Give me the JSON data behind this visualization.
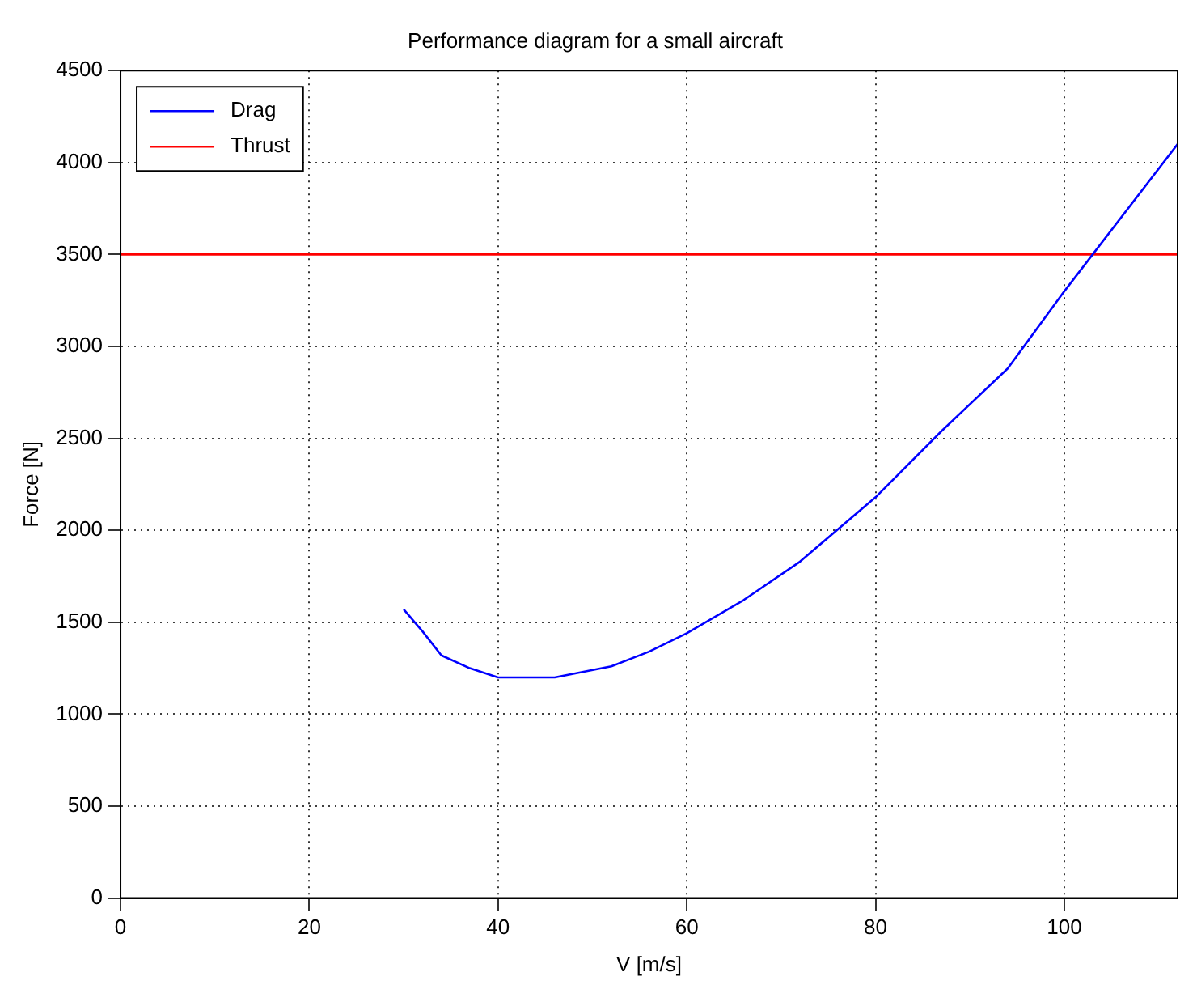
{
  "chart_data": {
    "type": "line",
    "title": "Performance diagram for a small aircraft",
    "xlabel": "V [m/s]",
    "ylabel": "Force [N]",
    "xlim": [
      0,
      112
    ],
    "xticks": [
      0,
      20,
      40,
      60,
      80,
      100
    ],
    "ylim": [
      0,
      4500
    ],
    "yticks": [
      0,
      500,
      1000,
      1500,
      2000,
      2500,
      3000,
      3500,
      4000,
      4500
    ],
    "grid": true,
    "legend": "top left",
    "marker": "none",
    "line_style": "solid",
    "series": [
      {
        "name": "Drag",
        "color": "#0000ff",
        "x": [
          30,
          32,
          34,
          37,
          40,
          46,
          52,
          56,
          60,
          66,
          72,
          80,
          87,
          94,
          100,
          103,
          112
        ],
        "values": [
          1570,
          1450,
          1320,
          1250,
          1200,
          1200,
          1260,
          1340,
          1440,
          1620,
          1830,
          2180,
          2540,
          2880,
          3300,
          3500,
          4100
        ]
      },
      {
        "name": "Thrust",
        "color": "#ff0000",
        "x": [
          0,
          112
        ],
        "values": [
          3500,
          3500
        ]
      }
    ]
  }
}
